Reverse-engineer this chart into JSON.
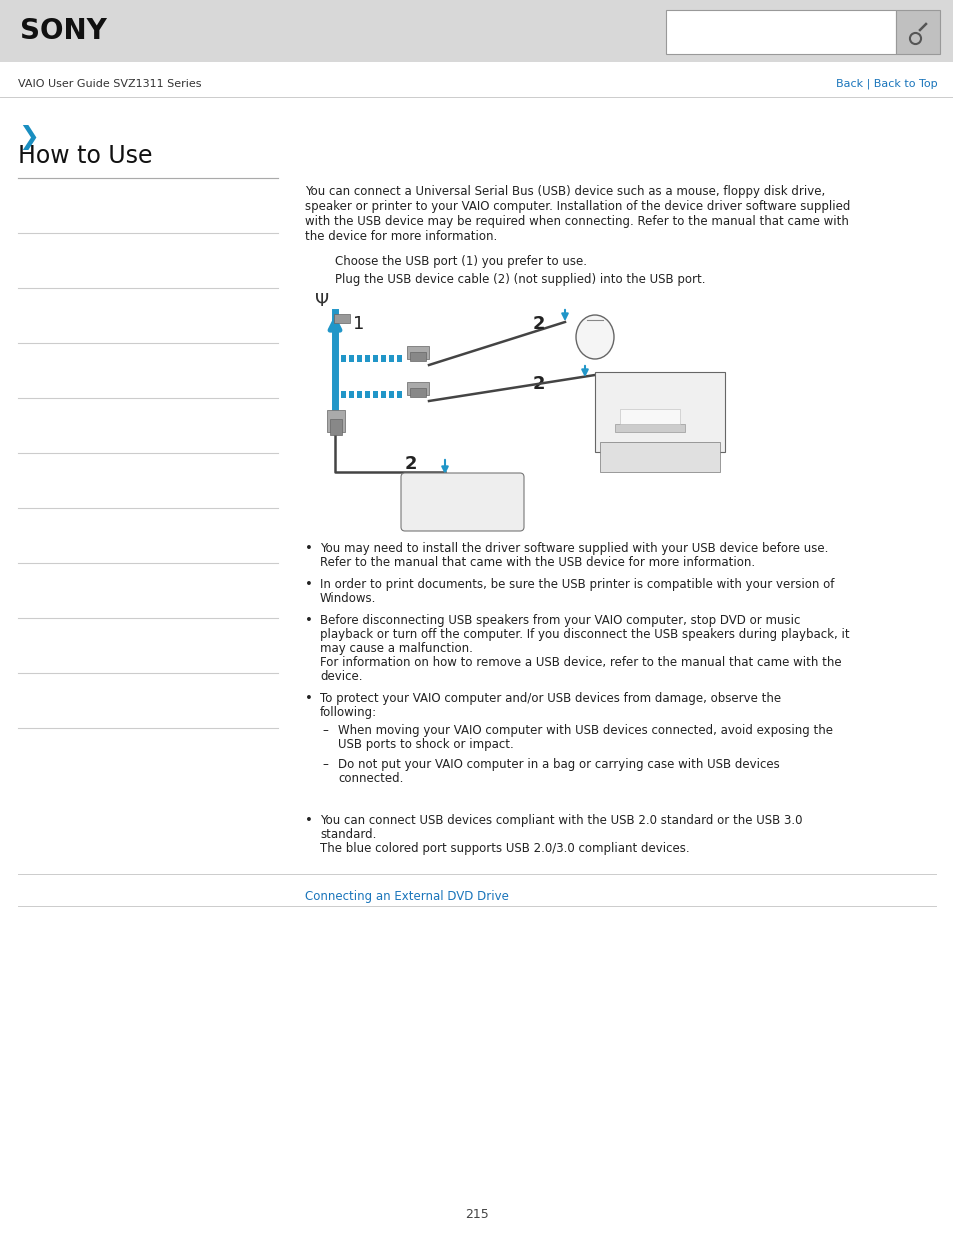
{
  "bg_color": "#ffffff",
  "header_bg": "#d8d8d8",
  "sony_text": "SONY",
  "nav_text": "VAIO User Guide SVZ1311 Series",
  "back_text": "Back | Back to Top",
  "back_color": "#1a75bb",
  "chevron_color": "#1a8ec0",
  "section_title": "How to Use",
  "section_title_size": 17,
  "intro_lines": [
    "You can connect a Universal Serial Bus (USB) device such as a mouse, floppy disk drive,",
    "speaker or printer to your VAIO computer. Installation of the device driver software supplied",
    "with the USB device may be required when connecting. Refer to the manual that came with",
    "the device for more information."
  ],
  "step1": "Choose the USB port (1) you prefer to use.",
  "step2": "Plug the USB device cable (2) (not supplied) into the USB port.",
  "bullet1_lines": [
    "You may need to install the driver software supplied with your USB device before use.",
    "Refer to the manual that came with the USB device for more information."
  ],
  "bullet2_lines": [
    "In order to print documents, be sure the USB printer is compatible with your version of",
    "Windows."
  ],
  "bullet3_lines": [
    "Before disconnecting USB speakers from your VAIO computer, stop DVD or music",
    "playback or turn off the computer. If you disconnect the USB speakers during playback, it",
    "may cause a malfunction.",
    "For information on how to remove a USB device, refer to the manual that came with the",
    "device."
  ],
  "bullet4_lines": [
    "To protect your VAIO computer and/or USB devices from damage, observe the",
    "following:"
  ],
  "sub1_lines": [
    "When moving your VAIO computer with USB devices connected, avoid exposing the",
    "USB ports to shock or impact."
  ],
  "sub2_lines": [
    "Do not put your VAIO computer in a bag or carrying case with USB devices",
    "connected."
  ],
  "note_lines": [
    "You can connect USB devices compliant with the USB 2.0 standard or the USB 3.0",
    "standard.",
    "The blue colored port supports USB 2.0/3.0 compliant devices."
  ],
  "link_text": "Connecting an External DVD Drive",
  "link_color": "#1a75bb",
  "page_num": "215",
  "sidebar_color": "#cccccc",
  "body_font_size": 8.5,
  "body_color": "#222222",
  "blue_arrow": "#2196C8",
  "usb_blue": "#2196C8"
}
